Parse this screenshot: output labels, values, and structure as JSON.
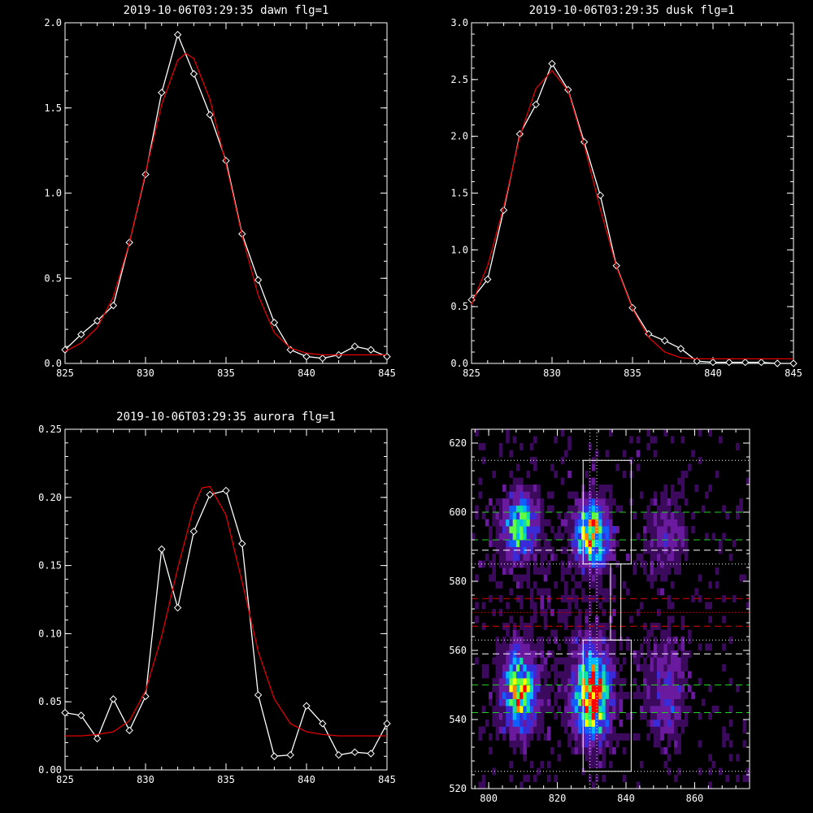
{
  "chart_data": [
    {
      "type": "line",
      "title": "2019-10-06T03:29:35 dawn flg=1",
      "xlim": [
        825,
        845
      ],
      "ylim": [
        0,
        2.0
      ],
      "xticks": [
        825,
        830,
        835,
        840,
        845
      ],
      "yticks": [
        0.0,
        0.5,
        1.0,
        1.5,
        2.0
      ],
      "ytick_labels": [
        "0.0",
        "0.5",
        "1.0",
        "1.5",
        "2.0"
      ],
      "series": [
        {
          "color": "#ffffff",
          "style": "line-diamond",
          "x": [
            825,
            826,
            827,
            828,
            829,
            830,
            831,
            832,
            833,
            834,
            835,
            836,
            837,
            838,
            839,
            840,
            841,
            842,
            843,
            844,
            845
          ],
          "values": [
            0.08,
            0.17,
            0.25,
            0.34,
            0.71,
            1.11,
            1.59,
            1.93,
            1.7,
            1.46,
            1.19,
            0.76,
            0.49,
            0.24,
            0.08,
            0.04,
            0.03,
            0.05,
            0.1,
            0.08,
            0.04
          ]
        },
        {
          "color": "#e00000",
          "style": "line",
          "x": [
            825,
            826,
            827,
            828,
            829,
            830,
            831,
            832,
            832.5,
            833,
            834,
            835,
            836,
            837,
            838,
            839,
            840,
            841,
            842,
            843,
            844,
            845
          ],
          "values": [
            0.07,
            0.12,
            0.21,
            0.39,
            0.71,
            1.12,
            1.52,
            1.78,
            1.82,
            1.79,
            1.55,
            1.17,
            0.75,
            0.4,
            0.18,
            0.09,
            0.06,
            0.05,
            0.05,
            0.05,
            0.05,
            0.05
          ]
        }
      ]
    },
    {
      "type": "line",
      "title": "2019-10-06T03:29:35 dusk flg=1",
      "xlim": [
        825,
        845
      ],
      "ylim": [
        0,
        3.0
      ],
      "xticks": [
        825,
        830,
        835,
        840,
        845
      ],
      "yticks": [
        0.0,
        0.5,
        1.0,
        1.5,
        2.0,
        2.5,
        3.0
      ],
      "ytick_labels": [
        "0.0",
        "0.5",
        "1.0",
        "1.5",
        "2.0",
        "2.5",
        "3.0"
      ],
      "series": [
        {
          "color": "#ffffff",
          "style": "line-diamond",
          "x": [
            825,
            826,
            827,
            828,
            829,
            830,
            831,
            832,
            833,
            834,
            835,
            836,
            837,
            838,
            839,
            840,
            841,
            842,
            843,
            844,
            845
          ],
          "values": [
            0.56,
            0.74,
            1.35,
            2.02,
            2.28,
            2.64,
            2.41,
            1.95,
            1.48,
            0.86,
            0.49,
            0.26,
            0.2,
            0.13,
            0.02,
            0.01,
            0.01,
            0.01,
            0.01,
            0.0,
            0.0
          ]
        },
        {
          "color": "#e00000",
          "style": "line",
          "x": [
            825,
            826,
            827,
            828,
            829,
            830,
            831,
            832,
            833,
            834,
            835,
            836,
            837,
            838,
            839,
            840,
            841,
            842,
            843,
            844,
            845
          ],
          "values": [
            0.52,
            0.86,
            1.38,
            2.0,
            2.42,
            2.58,
            2.4,
            1.92,
            1.36,
            0.85,
            0.48,
            0.23,
            0.1,
            0.05,
            0.04,
            0.04,
            0.04,
            0.04,
            0.04,
            0.04,
            0.04
          ]
        }
      ]
    },
    {
      "type": "line",
      "title": "2019-10-06T03:29:35 aurora flg=1",
      "xlim": [
        825,
        845
      ],
      "ylim": [
        0,
        0.25
      ],
      "xticks": [
        825,
        830,
        835,
        840,
        845
      ],
      "yticks": [
        0.0,
        0.05,
        0.1,
        0.15,
        0.2,
        0.25
      ],
      "ytick_labels": [
        "0.00",
        "0.05",
        "0.10",
        "0.15",
        "0.20",
        "0.25"
      ],
      "series": [
        {
          "color": "#ffffff",
          "style": "line-diamond",
          "x": [
            825,
            826,
            827,
            828,
            829,
            830,
            831,
            832,
            833,
            834,
            835,
            836,
            837,
            838,
            839,
            840,
            841,
            842,
            843,
            844,
            845
          ],
          "values": [
            0.042,
            0.04,
            0.023,
            0.052,
            0.029,
            0.054,
            0.162,
            0.119,
            0.175,
            0.202,
            0.205,
            0.166,
            0.055,
            0.01,
            0.011,
            0.047,
            0.034,
            0.011,
            0.013,
            0.012,
            0.034
          ]
        },
        {
          "color": "#e00000",
          "style": "line",
          "x": [
            825,
            826,
            827,
            828,
            829,
            830,
            831,
            832,
            833,
            833.5,
            834,
            835,
            836,
            837,
            838,
            839,
            840,
            841,
            842,
            843,
            844,
            845
          ],
          "values": [
            0.025,
            0.025,
            0.026,
            0.028,
            0.036,
            0.058,
            0.098,
            0.148,
            0.193,
            0.207,
            0.208,
            0.187,
            0.138,
            0.087,
            0.052,
            0.034,
            0.028,
            0.026,
            0.025,
            0.025,
            0.025,
            0.025
          ]
        }
      ]
    },
    {
      "type": "heatmap",
      "title": "",
      "xlim": [
        795,
        876
      ],
      "ylim": [
        520,
        624
      ],
      "xticks": [
        800,
        820,
        840,
        860
      ],
      "yticks": [
        520,
        540,
        560,
        580,
        600,
        620
      ],
      "colormap": [
        "#000000",
        "#3b0a5c",
        "#6a1a9e",
        "#3a2ad8",
        "#1060ff",
        "#00b8ff",
        "#10e0a0",
        "#60ff40",
        "#ffff00",
        "#ff8000",
        "#ff0000"
      ],
      "blobs": [
        {
          "x": 809,
          "y": 596,
          "sx": 3.0,
          "sy": 5.5,
          "peak": 0.62
        },
        {
          "x": 830,
          "y": 594,
          "sx": 3.0,
          "sy": 6.0,
          "peak": 0.78
        },
        {
          "x": 809,
          "y": 548,
          "sx": 3.0,
          "sy": 7.0,
          "peak": 0.74
        },
        {
          "x": 830,
          "y": 547,
          "sx": 3.2,
          "sy": 8.0,
          "peak": 1.0
        },
        {
          "x": 852,
          "y": 594,
          "sx": 4.0,
          "sy": 8.0,
          "peak": 0.16
        },
        {
          "x": 852,
          "y": 548,
          "sx": 4.0,
          "sy": 10.0,
          "peak": 0.2
        },
        {
          "x": 820,
          "y": 570,
          "sx": 30.0,
          "sy": 40.0,
          "peak": 0.06
        }
      ],
      "boxes": [
        {
          "x0": 827.5,
          "x1": 841.5,
          "y0": 585,
          "y1": 615
        },
        {
          "x0": 835.5,
          "x1": 838.5,
          "y0": 563,
          "y1": 585
        },
        {
          "x0": 827.5,
          "x1": 841.5,
          "y0": 525,
          "y1": 563
        }
      ],
      "dotted_vlines": [
        {
          "x": 829.5,
          "color": "#ffffff"
        },
        {
          "x": 831.5,
          "color": "#ffffff"
        }
      ],
      "dotted_hlines": [
        {
          "y": 615,
          "color": "#ffffff"
        },
        {
          "y": 585,
          "color": "#ffffff"
        },
        {
          "y": 563,
          "color": "#ffffff"
        },
        {
          "y": 525,
          "color": "#ffffff"
        },
        {
          "y": 571,
          "color": "#e00000"
        }
      ],
      "dashed_hlines": [
        {
          "y": 600,
          "color": "#20d020"
        },
        {
          "y": 592,
          "color": "#20d020"
        },
        {
          "y": 589,
          "color": "#ffffff"
        },
        {
          "y": 575,
          "color": "#e00000"
        },
        {
          "y": 567,
          "color": "#e00000"
        },
        {
          "y": 559,
          "color": "#ffffff"
        },
        {
          "y": 550,
          "color": "#20d020"
        },
        {
          "y": 542,
          "color": "#20d020"
        }
      ]
    }
  ]
}
